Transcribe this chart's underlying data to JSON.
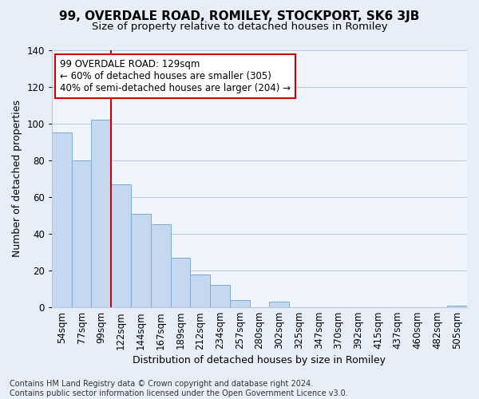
{
  "title": "99, OVERDALE ROAD, ROMILEY, STOCKPORT, SK6 3JB",
  "subtitle": "Size of property relative to detached houses in Romiley",
  "xlabel": "Distribution of detached houses by size in Romiley",
  "ylabel": "Number of detached properties",
  "categories": [
    "54sqm",
    "77sqm",
    "99sqm",
    "122sqm",
    "144sqm",
    "167sqm",
    "189sqm",
    "212sqm",
    "234sqm",
    "257sqm",
    "280sqm",
    "302sqm",
    "325sqm",
    "347sqm",
    "370sqm",
    "392sqm",
    "415sqm",
    "437sqm",
    "460sqm",
    "482sqm",
    "505sqm"
  ],
  "values": [
    95,
    80,
    102,
    67,
    51,
    45,
    27,
    18,
    12,
    4,
    0,
    3,
    0,
    0,
    0,
    0,
    0,
    0,
    0,
    0,
    1
  ],
  "bar_color": "#c5d8f0",
  "bar_edge_color": "#7aadd4",
  "highlight_index": 3,
  "highlight_color": "#cc0000",
  "annotation_text": "99 OVERDALE ROAD: 129sqm\n← 60% of detached houses are smaller (305)\n40% of semi-detached houses are larger (204) →",
  "annotation_box_color": "#cc0000",
  "ylim": [
    0,
    140
  ],
  "yticks": [
    0,
    20,
    40,
    60,
    80,
    100,
    120,
    140
  ],
  "footnote": "Contains HM Land Registry data © Crown copyright and database right 2024.\nContains public sector information licensed under the Open Government Licence v3.0.",
  "bg_color": "#e8eef8",
  "plot_bg_color": "#f0f4fc",
  "grid_color": "#b8c8e0",
  "title_fontsize": 11,
  "subtitle_fontsize": 9.5,
  "axis_label_fontsize": 9,
  "tick_fontsize": 8.5,
  "annotation_fontsize": 8.5,
  "footnote_fontsize": 7
}
